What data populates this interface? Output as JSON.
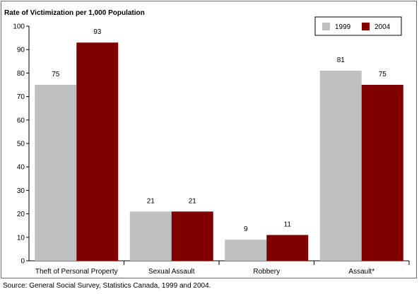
{
  "chart_data": {
    "type": "bar",
    "ylabel": "Rate of Victimization per 1,000 Population",
    "categories": [
      "Theft of Personal Property",
      "Sexual Assault",
      "Robbery",
      "Assault*"
    ],
    "series": [
      {
        "name": "1999",
        "values": [
          75,
          21,
          9,
          81
        ],
        "color": "#c0c0c0"
      },
      {
        "name": "2004",
        "values": [
          93,
          21,
          11,
          75
        ],
        "color": "#800000"
      }
    ],
    "ylim": [
      0,
      100
    ],
    "yticks": [
      0,
      10,
      20,
      30,
      40,
      50,
      60,
      70,
      80,
      90,
      100
    ],
    "grid": false,
    "legend": "top-right",
    "data_labels": true
  },
  "source": "Source:  General Social Survey, Statistics Canada, 1999 and 2004."
}
